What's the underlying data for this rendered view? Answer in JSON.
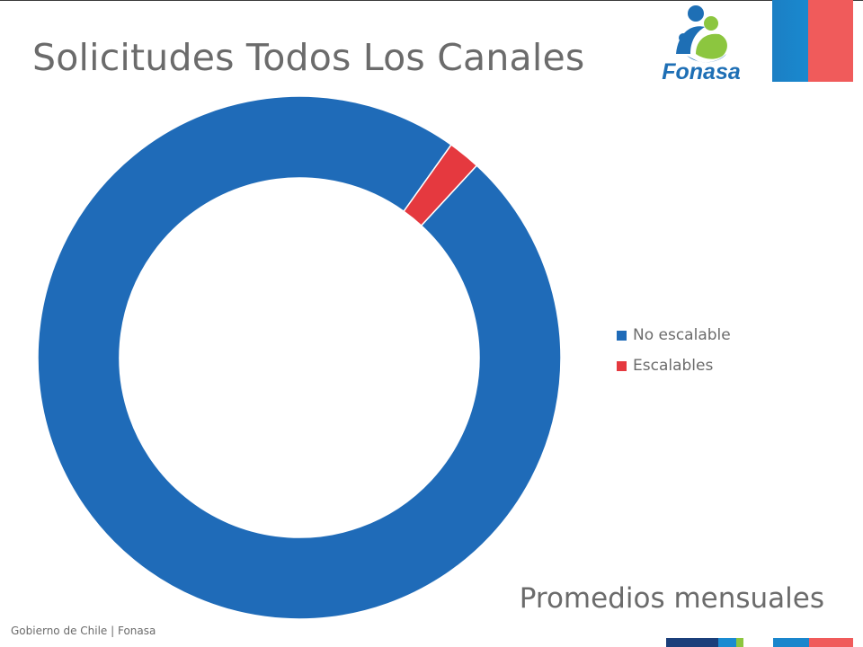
{
  "slide": {
    "title": "Solicitudes Todos Los Canales",
    "subtitle": "Promedios mensuales",
    "footer": "Gobierno de Chile | Fonasa",
    "logo_text": "Fonasa"
  },
  "colors": {
    "no_escalable": "#1f6bb8",
    "escalables": "#e5393f",
    "flag_blue": "#1a86cc",
    "flag_red": "#f05b5b",
    "logo_blue": "#1e6fb5",
    "logo_green": "#8cc63f",
    "text": "#6b6b6b"
  },
  "chart_data": {
    "type": "pie",
    "style": "donut",
    "title": "",
    "legend_position": "right",
    "series": [
      {
        "name": "No escalable",
        "value": 98
      },
      {
        "name": "Escalables",
        "value": 2
      }
    ]
  }
}
